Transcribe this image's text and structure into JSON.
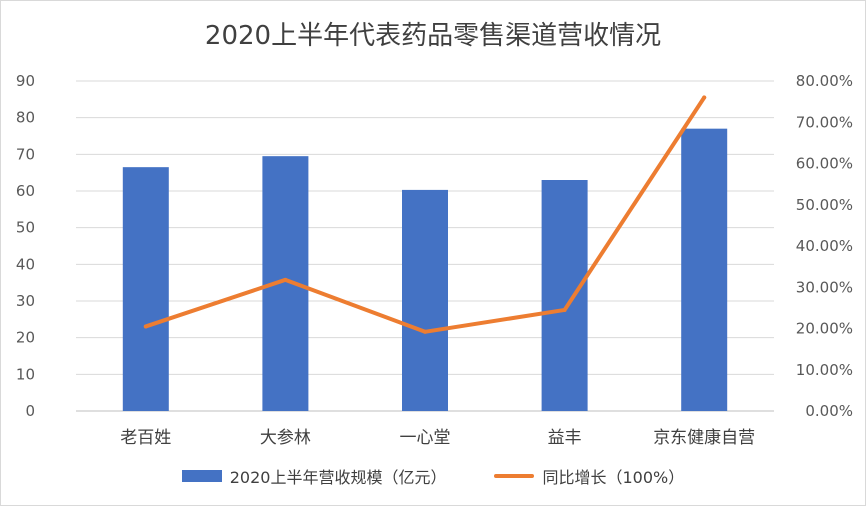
{
  "chart_data": {
    "type": "bar",
    "title": "2020上半年代表药品零售渠道营收情况",
    "categories": [
      "老百姓",
      "大参林",
      "一心堂",
      "益丰",
      "京东健康自营"
    ],
    "series": [
      {
        "name": "2020上半年营收规模（亿元）",
        "type": "bar",
        "axis": "left",
        "color": "#4472c4",
        "values": [
          66.5,
          69.5,
          60.3,
          63.0,
          77.0
        ]
      },
      {
        "name": "同比增长（100%）",
        "type": "line",
        "axis": "right",
        "color": "#ed7d31",
        "values": [
          0.205,
          0.318,
          0.192,
          0.245,
          0.76
        ]
      }
    ],
    "y_left": {
      "min": 0,
      "max": 90,
      "step": 10,
      "ticks": [
        "0",
        "10",
        "20",
        "30",
        "40",
        "50",
        "60",
        "70",
        "80",
        "90"
      ]
    },
    "y_right": {
      "min": 0,
      "max": 0.8,
      "step": 0.1,
      "ticks": [
        "0.00%",
        "10.00%",
        "20.00%",
        "30.00%",
        "40.00%",
        "50.00%",
        "60.00%",
        "70.00%",
        "80.00%"
      ]
    },
    "grid": true,
    "legend_position": "bottom"
  }
}
